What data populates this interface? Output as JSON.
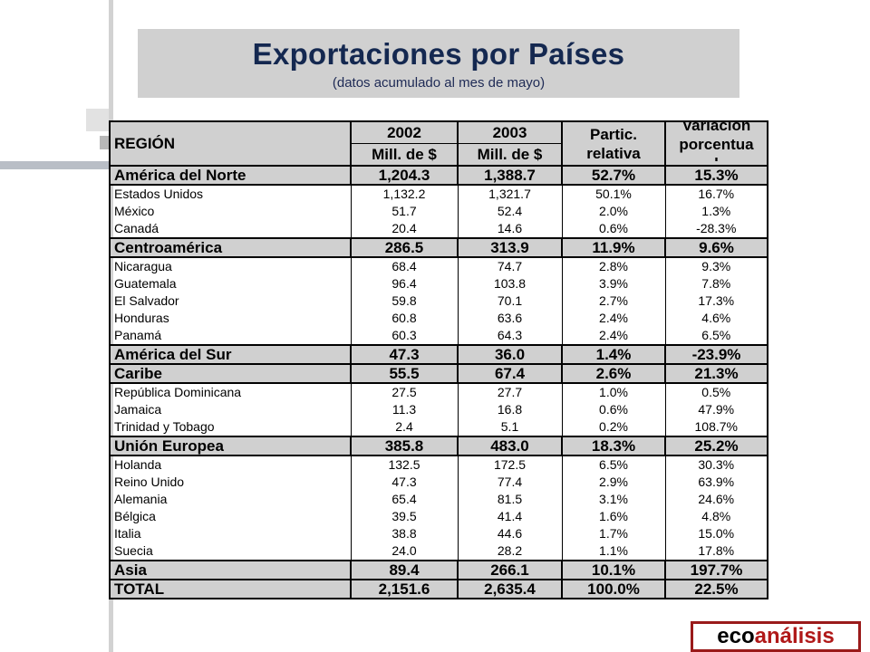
{
  "title": {
    "main": "Exportaciones por Países",
    "subtitle": "(datos acumulado al mes de mayo)"
  },
  "table": {
    "header": {
      "region": "REGIÓN",
      "year1": "2002",
      "year2": "2003",
      "unit1": "Mill. de $",
      "unit2": "Mill. de $",
      "partic_line1": "Partic.",
      "partic_line2": "relativa",
      "var_line1": "Variación",
      "var_line2": "porcentua",
      "var_line3": "l"
    },
    "groups": [
      {
        "name": "América del  Norte",
        "v2002": "1,204.3",
        "v2003": "1,388.7",
        "partic": "52.7%",
        "var": "15.3%",
        "items": [
          {
            "name": "Estados Unidos",
            "v2002": "1,132.2",
            "v2003": "1,321.7",
            "partic": "50.1%",
            "var": "16.7%"
          },
          {
            "name": "México",
            "v2002": "51.7",
            "v2003": "52.4",
            "partic": "2.0%",
            "var": "1.3%"
          },
          {
            "name": "Canadá",
            "v2002": "20.4",
            "v2003": "14.6",
            "partic": "0.6%",
            "var": "-28.3%"
          }
        ]
      },
      {
        "name": "Centroamérica",
        "v2002": "286.5",
        "v2003": "313.9",
        "partic": "11.9%",
        "var": "9.6%",
        "items": [
          {
            "name": "Nicaragua",
            "v2002": "68.4",
            "v2003": "74.7",
            "partic": "2.8%",
            "var": "9.3%"
          },
          {
            "name": "Guatemala",
            "v2002": "96.4",
            "v2003": "103.8",
            "partic": "3.9%",
            "var": "7.8%"
          },
          {
            "name": "El Salvador",
            "v2002": "59.8",
            "v2003": "70.1",
            "partic": "2.7%",
            "var": "17.3%"
          },
          {
            "name": "Honduras",
            "v2002": "60.8",
            "v2003": "63.6",
            "partic": "2.4%",
            "var": "4.6%"
          },
          {
            "name": "Panamá",
            "v2002": "60.3",
            "v2003": "64.3",
            "partic": "2.4%",
            "var": "6.5%"
          }
        ]
      },
      {
        "name": "América del Sur",
        "v2002": "47.3",
        "v2003": "36.0",
        "partic": "1.4%",
        "var": "-23.9%",
        "items": []
      },
      {
        "name": "Caribe",
        "v2002": "55.5",
        "v2003": "67.4",
        "partic": "2.6%",
        "var": "21.3%",
        "items": [
          {
            "name": "República Dominicana",
            "v2002": "27.5",
            "v2003": "27.7",
            "partic": "1.0%",
            "var": "0.5%"
          },
          {
            "name": "Jamaica",
            "v2002": "11.3",
            "v2003": "16.8",
            "partic": "0.6%",
            "var": "47.9%"
          },
          {
            "name": "Trinidad y Tobago",
            "v2002": "2.4",
            "v2003": "5.1",
            "partic": "0.2%",
            "var": "108.7%"
          }
        ]
      },
      {
        "name": "Unión Europea",
        "v2002": "385.8",
        "v2003": "483.0",
        "partic": "18.3%",
        "var": "25.2%",
        "items": [
          {
            "name": "Holanda",
            "v2002": "132.5",
            "v2003": "172.5",
            "partic": "6.5%",
            "var": "30.3%"
          },
          {
            "name": "Reino Unido",
            "v2002": "47.3",
            "v2003": "77.4",
            "partic": "2.9%",
            "var": "63.9%"
          },
          {
            "name": "Alemania",
            "v2002": "65.4",
            "v2003": "81.5",
            "partic": "3.1%",
            "var": "24.6%"
          },
          {
            "name": "Bélgica",
            "v2002": "39.5",
            "v2003": "41.4",
            "partic": "1.6%",
            "var": "4.8%"
          },
          {
            "name": "Italia",
            "v2002": "38.8",
            "v2003": "44.6",
            "partic": "1.7%",
            "var": "15.0%"
          },
          {
            "name": "Suecia",
            "v2002": "24.0",
            "v2003": "28.2",
            "partic": "1.1%",
            "var": "17.8%"
          }
        ]
      },
      {
        "name": "Asia",
        "v2002": "89.4",
        "v2003": "266.1",
        "partic": "10.1%",
        "var": "197.7%",
        "items": []
      },
      {
        "name": "TOTAL",
        "v2002": "2,151.6",
        "v2003": "2,635.4",
        "partic": "100.0%",
        "var": "22.5%",
        "items": []
      }
    ]
  },
  "logo": {
    "part1": "eco",
    "part2": "análisis"
  },
  "colors": {
    "title_text": "#142850",
    "header_fill": "#d0d0d0",
    "logo_red": "#b01818"
  }
}
